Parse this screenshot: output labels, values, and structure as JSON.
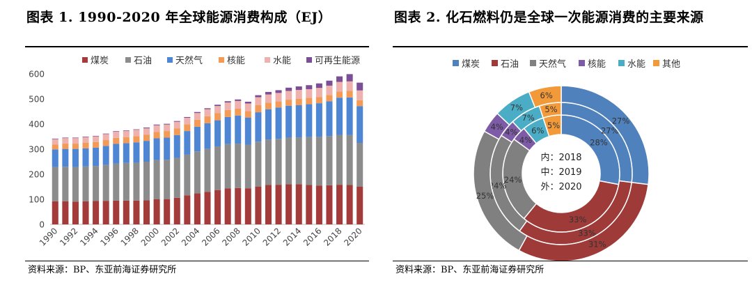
{
  "left": {
    "title": "图表 1.   1990-2020 年全球能源消费构成（EJ）",
    "source": "资料来源：BP、东亚前海证券研究所"
  },
  "right": {
    "title": "图表 2.   化石燃料仍是全球一次能源消费的主要来源",
    "source": "资料来源：BP、东亚前海证券研究所"
  },
  "chart_data": [
    {
      "type": "bar",
      "stacked": true,
      "title": "1990-2020 年全球能源消费构成（EJ）",
      "categories": [
        "1990",
        "1991",
        "1992",
        "1993",
        "1994",
        "1995",
        "1996",
        "1997",
        "1998",
        "1999",
        "2000",
        "2001",
        "2002",
        "2003",
        "2004",
        "2005",
        "2006",
        "2007",
        "2008",
        "2009",
        "2010",
        "2011",
        "2012",
        "2013",
        "2014",
        "2015",
        "2016",
        "2017",
        "2018",
        "2019",
        "2020"
      ],
      "x_tick_labels": [
        "1990",
        "1992",
        "1994",
        "1996",
        "1998",
        "2000",
        "2002",
        "2004",
        "2006",
        "2008",
        "2010",
        "2012",
        "2014",
        "2016",
        "2018",
        "2020"
      ],
      "ylim": [
        0,
        600
      ],
      "y_ticks": [
        0,
        100,
        200,
        300,
        400,
        500,
        600
      ],
      "grid": false,
      "legend_position": "top",
      "series": [
        {
          "name": "煤炭",
          "color": "#A33B3A",
          "values": [
            92,
            92,
            91,
            92,
            93,
            94,
            95,
            95,
            95,
            96,
            100,
            101,
            106,
            116,
            124,
            130,
            137,
            143,
            145,
            144,
            151,
            157,
            158,
            160,
            160,
            157,
            155,
            156,
            158,
            157,
            151
          ]
        },
        {
          "name": "石油",
          "color": "#8C8C8C",
          "values": [
            137,
            138,
            138,
            139,
            140,
            143,
            147,
            150,
            151,
            154,
            156,
            157,
            159,
            162,
            167,
            171,
            174,
            177,
            177,
            174,
            179,
            181,
            183,
            186,
            187,
            191,
            194,
            196,
            199,
            199,
            174
          ]
        },
        {
          "name": "天然气",
          "color": "#4F86D4",
          "values": [
            70,
            71,
            72,
            72,
            73,
            76,
            79,
            79,
            81,
            83,
            87,
            88,
            91,
            94,
            98,
            102,
            104,
            108,
            112,
            108,
            117,
            121,
            125,
            127,
            128,
            131,
            134,
            139,
            148,
            150,
            146
          ]
        },
        {
          "name": "核能",
          "color": "#F39A56",
          "values": [
            20,
            21,
            21,
            22,
            22,
            23,
            24,
            24,
            25,
            25,
            26,
            26,
            27,
            27,
            28,
            28,
            28,
            28,
            27,
            26,
            28,
            26,
            24,
            24,
            25,
            25,
            25,
            25,
            25,
            26,
            24
          ]
        },
        {
          "name": "水能",
          "color": "#EEB1AE",
          "values": [
            21,
            22,
            22,
            23,
            23,
            24,
            25,
            25,
            25,
            25,
            26,
            26,
            26,
            26,
            27,
            28,
            29,
            30,
            31,
            30,
            32,
            33,
            34,
            35,
            36,
            35,
            36,
            37,
            38,
            38,
            39
          ]
        },
        {
          "name": "可再生能源",
          "color": "#7B4F96",
          "values": [
            2,
            2,
            2,
            2,
            2,
            2,
            2,
            2,
            2,
            3,
            3,
            3,
            3,
            3,
            4,
            4,
            5,
            5,
            6,
            7,
            8,
            10,
            11,
            13,
            14,
            16,
            18,
            20,
            22,
            29,
            31
          ]
        }
      ]
    },
    {
      "type": "pie",
      "subtype": "nested-donut",
      "title": "化石燃料仍是全球一次能源消费的主要来源",
      "center_labels": [
        "内：2018",
        "中：2019",
        "外：2020"
      ],
      "legend_position": "top",
      "categories": [
        "煤炭",
        "石油",
        "天然气",
        "核能",
        "水能",
        "其他"
      ],
      "colors": [
        "#4F81BD",
        "#9E3A38",
        "#808080",
        "#7D5BA6",
        "#4BACC6",
        "#F29A3A"
      ],
      "series": [
        {
          "name": "2018",
          "ring": "inner",
          "values": [
            28,
            33,
            24,
            4,
            6,
            5
          ]
        },
        {
          "name": "2019",
          "ring": "middle",
          "values": [
            27,
            33,
            24,
            4,
            7,
            5
          ]
        },
        {
          "name": "2020",
          "ring": "outer",
          "values": [
            27,
            31,
            25,
            4,
            7,
            6
          ]
        }
      ]
    }
  ]
}
